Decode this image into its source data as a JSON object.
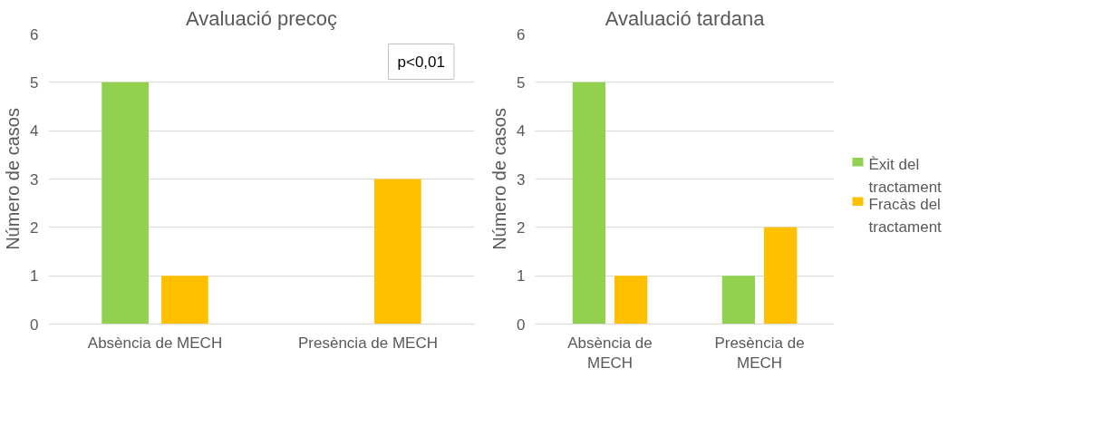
{
  "chart_data": [
    {
      "type": "bar",
      "title": "Avaluació precoç",
      "ylabel": "Número de casos",
      "categories": [
        "Absència de MECH",
        "Presència de MECH"
      ],
      "series": [
        {
          "color": "#92d050",
          "values": [
            5,
            0
          ]
        },
        {
          "color": "#ffc000",
          "values": [
            1,
            3
          ]
        }
      ],
      "ylim": [
        0,
        6
      ],
      "yticks": [
        0,
        1,
        2,
        3,
        4,
        5,
        6
      ],
      "grid": "y",
      "annotations": [
        "p<0,01"
      ]
    },
    {
      "type": "bar",
      "title": "Avaluació tardana",
      "ylabel": "Número de casos",
      "categories": [
        "Absència de MECH",
        "Presència de MECH"
      ],
      "series": [
        {
          "name": "Èxit del tractament",
          "color": "#92d050",
          "values": [
            5,
            1
          ]
        },
        {
          "name": "Fracàs del tractament",
          "color": "#ffc000",
          "values": [
            1,
            2
          ]
        }
      ],
      "ylim": [
        0,
        6
      ],
      "yticks": [
        0,
        1,
        2,
        3,
        4,
        5,
        6
      ],
      "grid": "y",
      "legend": "right"
    }
  ]
}
